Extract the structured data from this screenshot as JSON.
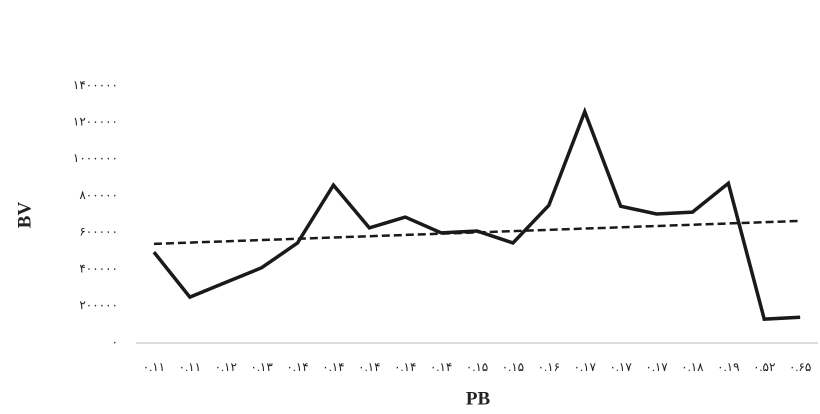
{
  "chart_data": {
    "type": "line",
    "x_label": "PB",
    "y_label": "BV",
    "categories": [
      "۰.۱۱",
      "۰.۱۱",
      "۰.۱۲",
      "۰.۱۳",
      "۰.۱۴",
      "۰.۱۴",
      "۰.۱۴",
      "۰.۱۴",
      "۰.۱۴",
      "۰.۱۵",
      "۰.۱۵",
      "۰.۱۶",
      "۰.۱۷",
      "۰.۱۷",
      "۰.۱۷",
      "۰.۱۸",
      "۰.۱۹",
      "۰.۵۲",
      "۰.۶۵"
    ],
    "values": [
      495000,
      250000,
      330000,
      410000,
      545000,
      860000,
      627000,
      686000,
      600000,
      610000,
      545000,
      750000,
      1260000,
      745000,
      703000,
      713000,
      870000,
      130000,
      140000
    ],
    "color": "#1a1a1a",
    "trendline": [
      540000,
      665000
    ],
    "ylim": [
      0,
      1400000
    ],
    "yticks": [
      {
        "value": 0,
        "label": "۰"
      },
      {
        "value": 200000,
        "label": "۲۰۰۰۰۰"
      },
      {
        "value": 400000,
        "label": "۴۰۰۰۰۰"
      },
      {
        "value": 600000,
        "label": "۶۰۰۰۰۰"
      },
      {
        "value": 800000,
        "label": "۸۰۰۰۰۰"
      },
      {
        "value": 1000000,
        "label": "۱۰۰۰۰۰۰"
      },
      {
        "value": 1200000,
        "label": "۱۲۰۰۰۰۰"
      },
      {
        "value": 1400000,
        "label": "۱۴۰۰۰۰۰"
      }
    ],
    "grid": false
  }
}
